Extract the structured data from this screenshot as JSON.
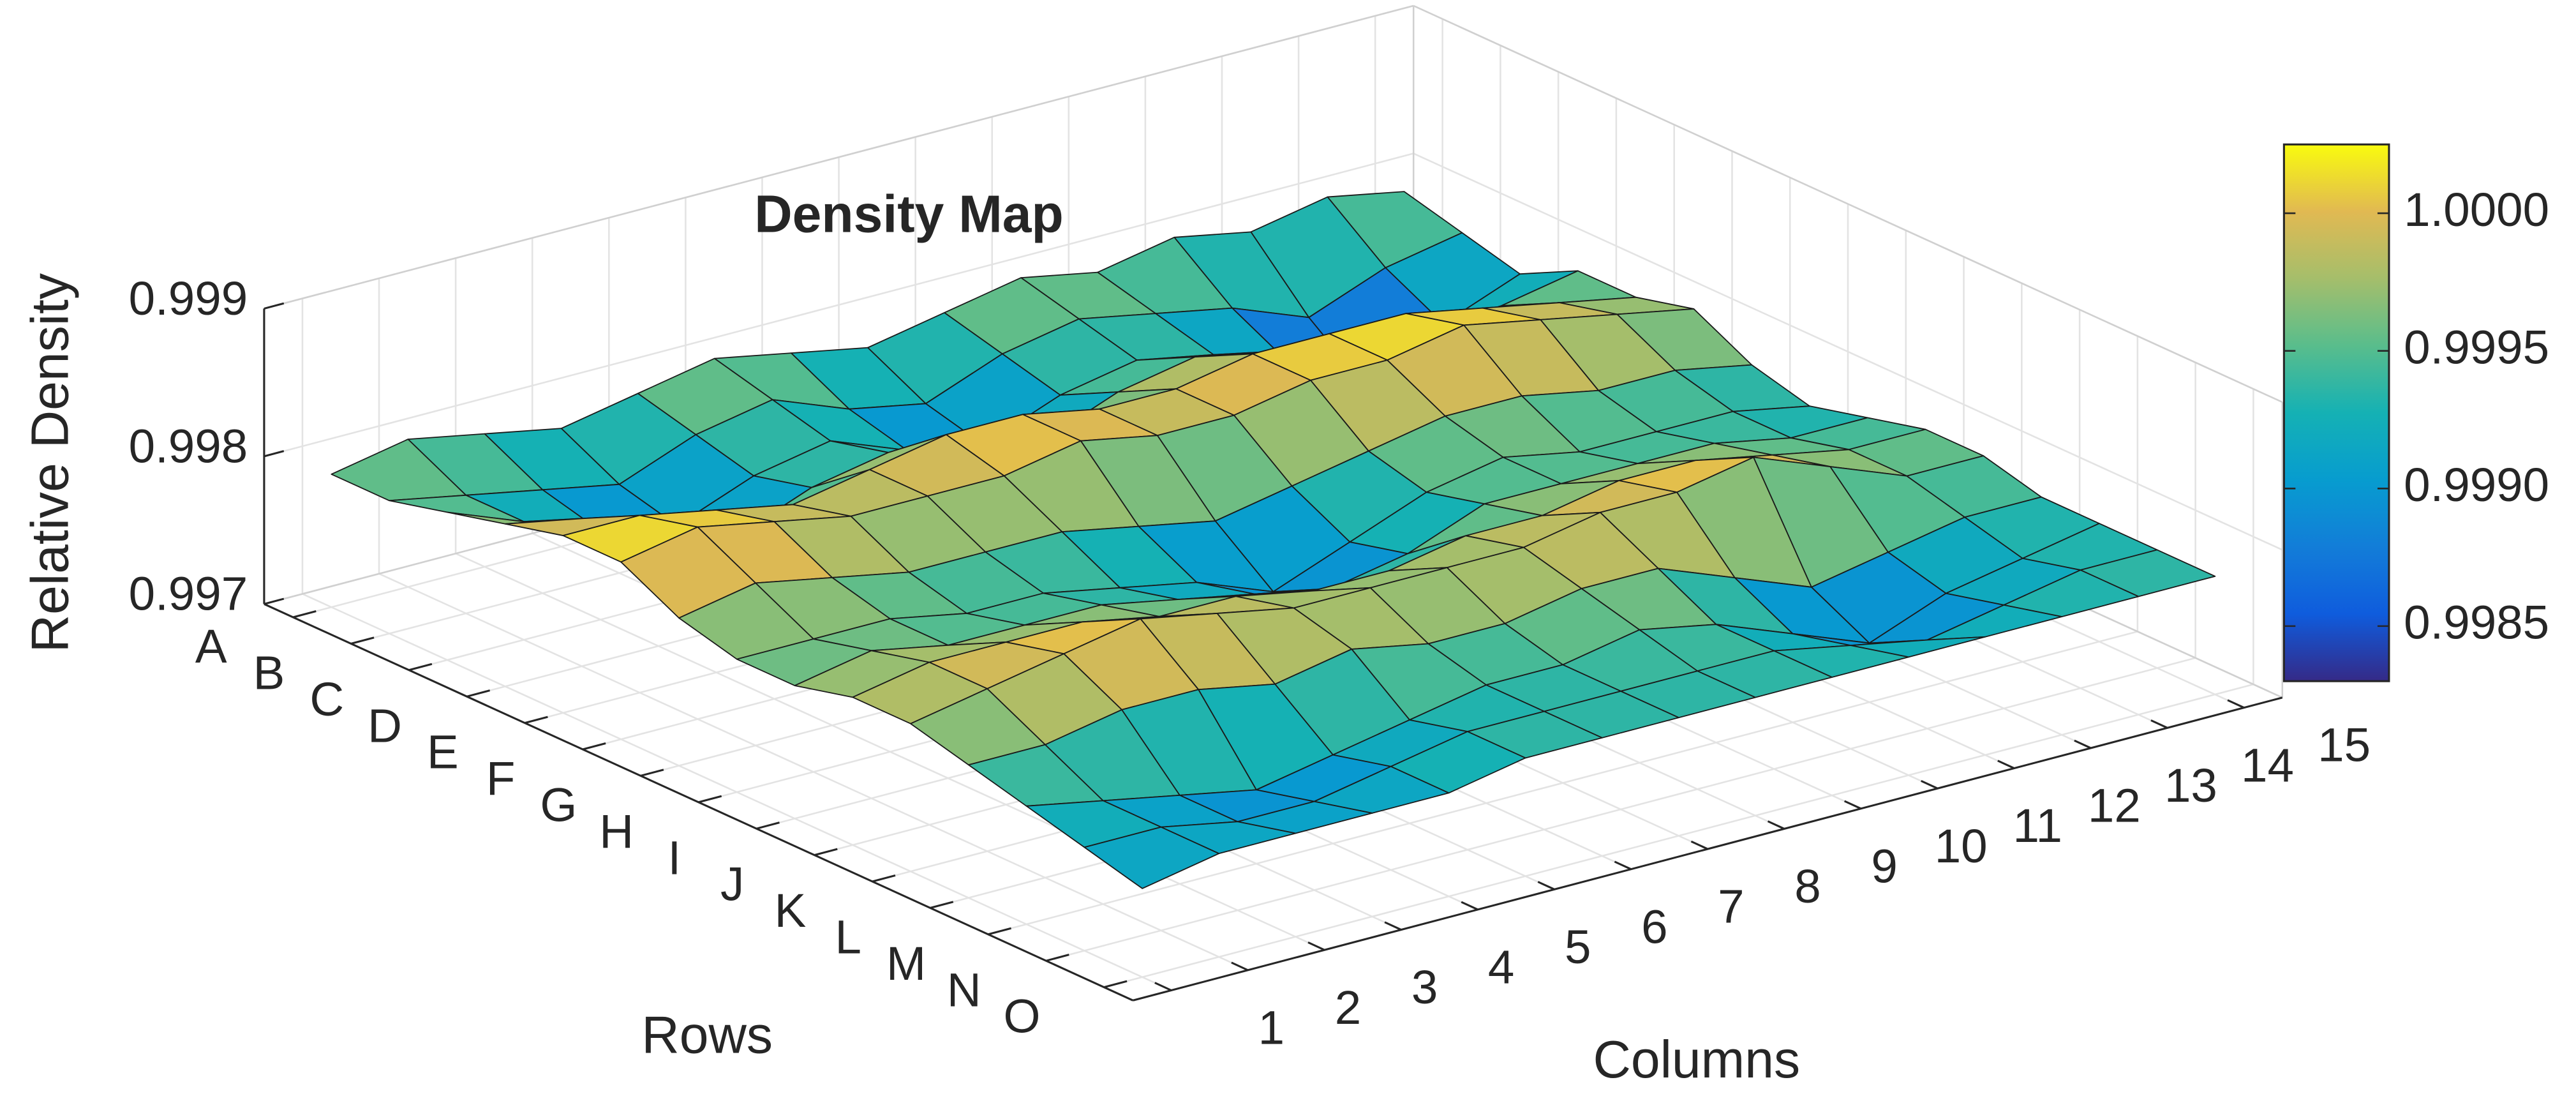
{
  "chart_data": {
    "type": "surface",
    "title": "Density Map",
    "xlabel": "Columns",
    "ylabel": "Rows",
    "zlabel": "Relative Density",
    "categories": [
      "A",
      "B",
      "C",
      "D",
      "E",
      "F",
      "G",
      "H",
      "I",
      "J",
      "K",
      "L",
      "M",
      "N",
      "O"
    ],
    "x": [
      1,
      2,
      3,
      4,
      5,
      6,
      7,
      8,
      9,
      10,
      11,
      12,
      13,
      14,
      15
    ],
    "xlim": [
      0.5,
      15.5
    ],
    "xticks": [
      1,
      2,
      3,
      4,
      5,
      6,
      7,
      8,
      9,
      10,
      11,
      12,
      13,
      14,
      15
    ],
    "zlim": [
      0.997,
      0.999
    ],
    "zticks": [
      0.997,
      0.998,
      0.999
    ],
    "grid": true,
    "values": [
      [
        0.9979,
        0.998,
        0.9979,
        0.9978,
        0.9979,
        0.998,
        0.9979,
        0.9978,
        0.9979,
        0.998,
        0.9979,
        0.998,
        0.9979,
        0.998,
        0.9979
      ],
      [
        0.9979,
        0.9978,
        0.9977,
        0.9976,
        0.9978,
        0.9979,
        0.9977,
        0.9976,
        0.9978,
        0.9979,
        0.9978,
        0.9977,
        0.9975,
        0.9977,
        0.9978
      ],
      [
        0.998,
        0.9978,
        0.9976,
        0.9975,
        0.9977,
        0.9978,
        0.9976,
        0.9975,
        0.9977,
        0.9978,
        0.9977,
        0.9975,
        0.9972,
        0.9975,
        0.9977
      ],
      [
        0.9981,
        0.998,
        0.9978,
        0.9976,
        0.9978,
        0.9979,
        0.9978,
        0.9977,
        0.9979,
        0.998,
        0.9979,
        0.9978,
        0.9975,
        0.9978,
        0.9979
      ],
      [
        0.9982,
        0.9982,
        0.9981,
        0.998,
        0.9981,
        0.9982,
        0.9982,
        0.9981,
        0.9981,
        0.9982,
        0.9982,
        0.9982,
        0.9981,
        0.998,
        0.9979
      ],
      [
        0.9982,
        0.9983,
        0.9982,
        0.9981,
        0.9981,
        0.9981,
        0.9982,
        0.9981,
        0.9981,
        0.9982,
        0.9982,
        0.9983,
        0.9982,
        0.9981,
        0.998
      ],
      [
        0.998,
        0.9981,
        0.998,
        0.9979,
        0.9979,
        0.9979,
        0.9978,
        0.9977,
        0.9978,
        0.9979,
        0.998,
        0.998,
        0.9979,
        0.9979,
        0.9978
      ],
      [
        0.9979,
        0.9979,
        0.9979,
        0.9978,
        0.9978,
        0.9977,
        0.9976,
        0.9974,
        0.9976,
        0.9978,
        0.9979,
        0.9978,
        0.9978,
        0.9978,
        0.9977
      ],
      [
        0.9979,
        0.998,
        0.9979,
        0.9979,
        0.9979,
        0.9978,
        0.9977,
        0.9976,
        0.9977,
        0.9979,
        0.9979,
        0.9979,
        0.9979,
        0.9978,
        0.9978
      ],
      [
        0.998,
        0.9981,
        0.9981,
        0.9981,
        0.998,
        0.998,
        0.9979,
        0.9979,
        0.998,
        0.998,
        0.9981,
        0.9981,
        0.998,
        0.9979,
        0.9979
      ],
      [
        0.998,
        0.9981,
        0.9982,
        0.9983,
        0.9982,
        0.9981,
        0.9981,
        0.9981,
        0.9981,
        0.9982,
        0.9982,
        0.9983,
        0.9981,
        0.9979,
        0.9979
      ],
      [
        0.9979,
        0.9979,
        0.998,
        0.998,
        0.9979,
        0.998,
        0.9979,
        0.9979,
        0.998,
        0.998,
        0.9978,
        0.9976,
        0.9977,
        0.9978,
        0.9978
      ],
      [
        0.9978,
        0.9977,
        0.9976,
        0.9975,
        0.9976,
        0.9977,
        0.9978,
        0.9978,
        0.9979,
        0.9978,
        0.9976,
        0.9974,
        0.9976,
        0.9977,
        0.9978
      ],
      [
        0.9977,
        0.9977,
        0.9976,
        0.9976,
        0.9977,
        0.9978,
        0.9978,
        0.9978,
        0.9978,
        0.9978,
        0.9977,
        0.9976,
        0.9977,
        0.9978,
        0.9978
      ],
      [
        0.9976,
        0.9977,
        0.9977,
        0.9977,
        0.9977,
        0.9978,
        0.9978,
        0.9978,
        0.9978,
        0.9978,
        0.9978,
        0.9978,
        0.9978,
        0.9978,
        0.9978
      ]
    ],
    "colorbar": {
      "clim": [
        0.9983,
        1.00025
      ],
      "ticks": [
        {
          "value": 0.9985,
          "label": "0.9985"
        },
        {
          "value": 0.999,
          "label": "0.9990"
        },
        {
          "value": 0.9995,
          "label": "0.9995"
        },
        {
          "value": 1,
          "label": "1.0000"
        }
      ]
    }
  }
}
